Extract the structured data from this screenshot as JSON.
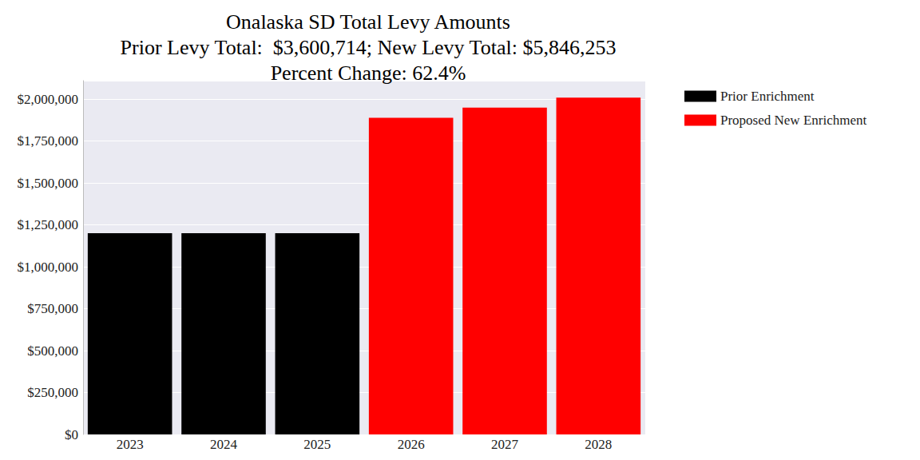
{
  "chart_data": {
    "type": "bar",
    "title": "Onalaska SD Total Levy Amounts\nPrior Levy Total:  $3,600,714; New Levy Total: $5,846,253\nPercent Change: 62.4%",
    "categories": [
      "2023",
      "2024",
      "2025",
      "2026",
      "2027",
      "2028"
    ],
    "series": [
      {
        "name": "Prior Enrichment",
        "color": "#000000",
        "values": [
          1200238,
          1200238,
          1200238,
          null,
          null,
          null
        ]
      },
      {
        "name": "Proposed New Enrichment",
        "color": "#ff0000",
        "values": [
          null,
          null,
          null,
          1889000,
          1948750,
          2008503
        ]
      }
    ],
    "ylim": [
      0,
      2110000
    ],
    "yticks": [
      {
        "value": 0,
        "label": "$0"
      },
      {
        "value": 250000,
        "label": "$250,000"
      },
      {
        "value": 500000,
        "label": "$500,000"
      },
      {
        "value": 750000,
        "label": "$750,000"
      },
      {
        "value": 1000000,
        "label": "$1,000,000"
      },
      {
        "value": 1250000,
        "label": "$1,250,000"
      },
      {
        "value": 1500000,
        "label": "$1,500,000"
      },
      {
        "value": 1750000,
        "label": "$1,750,000"
      },
      {
        "value": 2000000,
        "label": "$2,000,000"
      }
    ],
    "grid": true,
    "legend": "upper right"
  }
}
